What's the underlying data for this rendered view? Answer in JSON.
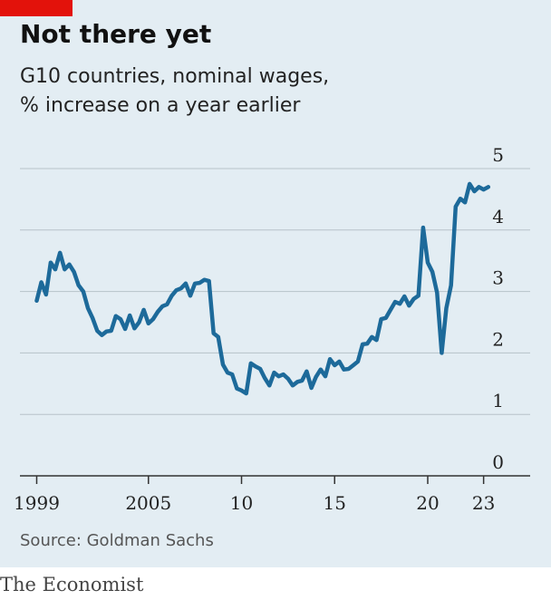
{
  "header": {
    "title": "Not there yet",
    "subtitle_lines": [
      "G10 countries, nominal wages,",
      "% increase on a year earlier"
    ]
  },
  "chart_data": {
    "type": "line",
    "color": "#1d6a9a",
    "x": [
      1999,
      1999.25,
      1999.5,
      1999.75,
      2000,
      2000.25,
      2000.5,
      2000.75,
      2001,
      2001.25,
      2001.5,
      2001.75,
      2002,
      2002.25,
      2002.5,
      2002.75,
      2003,
      2003.25,
      2003.5,
      2003.75,
      2004,
      2004.25,
      2004.5,
      2004.75,
      2005,
      2005.25,
      2005.5,
      2005.75,
      2006,
      2006.25,
      2006.5,
      2006.75,
      2007,
      2007.25,
      2007.5,
      2007.75,
      2008,
      2008.25,
      2008.5,
      2008.75,
      2009,
      2009.25,
      2009.5,
      2009.75,
      2010,
      2010.25,
      2010.5,
      2010.75,
      2011,
      2011.25,
      2011.5,
      2011.75,
      2012,
      2012.25,
      2012.5,
      2012.75,
      2013,
      2013.25,
      2013.5,
      2013.75,
      2014,
      2014.25,
      2014.5,
      2014.75,
      2015,
      2015.25,
      2015.5,
      2015.75,
      2016,
      2016.25,
      2016.5,
      2016.75,
      2017,
      2017.25,
      2017.5,
      2017.75,
      2018,
      2018.25,
      2018.5,
      2018.75,
      2019,
      2019.25,
      2019.5,
      2019.75,
      2020,
      2020.25,
      2020.5,
      2020.75,
      2021,
      2021.25,
      2021.5,
      2021.75,
      2022,
      2022.25,
      2022.5,
      2022.75,
      2023,
      2023.25
    ],
    "values": [
      2.85,
      3.15,
      2.95,
      3.47,
      3.36,
      3.63,
      3.36,
      3.44,
      3.32,
      3.1,
      3.0,
      2.73,
      2.57,
      2.36,
      2.29,
      2.35,
      2.36,
      2.6,
      2.55,
      2.39,
      2.61,
      2.4,
      2.5,
      2.7,
      2.48,
      2.55,
      2.67,
      2.76,
      2.79,
      2.93,
      3.02,
      3.05,
      3.13,
      2.93,
      3.13,
      3.14,
      3.19,
      3.17,
      2.32,
      2.26,
      1.81,
      1.68,
      1.65,
      1.42,
      1.39,
      1.34,
      1.83,
      1.78,
      1.74,
      1.59,
      1.47,
      1.68,
      1.62,
      1.65,
      1.58,
      1.47,
      1.53,
      1.55,
      1.7,
      1.43,
      1.61,
      1.73,
      1.62,
      1.9,
      1.8,
      1.86,
      1.73,
      1.74,
      1.8,
      1.86,
      2.14,
      2.15,
      2.26,
      2.21,
      2.55,
      2.57,
      2.7,
      2.83,
      2.8,
      2.92,
      2.77,
      2.88,
      2.93,
      4.04,
      3.47,
      3.32,
      2.98,
      2.0,
      2.73,
      3.1,
      4.38,
      4.51,
      4.45,
      4.75,
      4.63,
      4.7,
      4.66,
      4.7
    ],
    "xlim": [
      1998.1,
      2025.5
    ],
    "xticks": [
      1999,
      2005,
      {
        "value": 2010,
        "label": "10"
      },
      {
        "value": 2015,
        "label": "15"
      },
      {
        "value": 2020,
        "label": "20"
      },
      {
        "value": 2023,
        "label": "23"
      }
    ],
    "ylim": [
      0,
      5
    ],
    "yticks": [
      0,
      1,
      2,
      3,
      4,
      5
    ],
    "grid": true,
    "source": "Source: Goldman Sachs"
  },
  "footer": {
    "brand": "The Economist"
  }
}
